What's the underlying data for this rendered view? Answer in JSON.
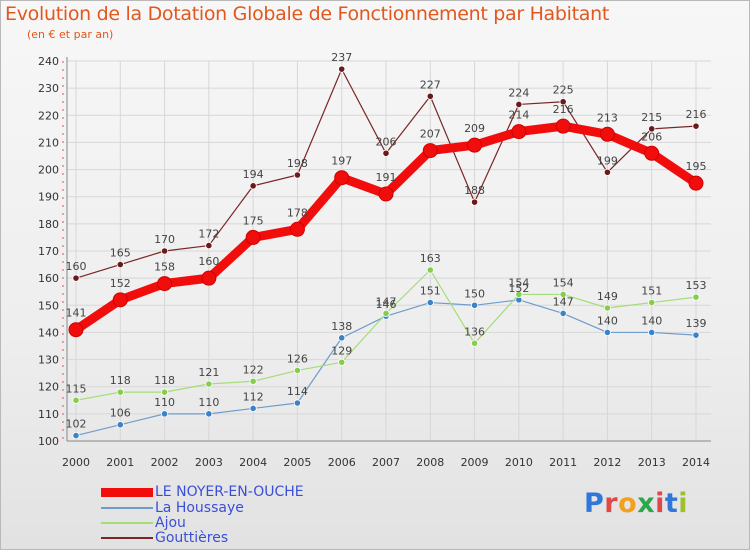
{
  "title": "Evolution de la Dotation Globale de Fonctionnement par Habitant",
  "subtitle": "(en € et par an)",
  "logo": {
    "text": "Proxiti",
    "letters": [
      {
        "ch": "P",
        "color": "#2f77d8"
      },
      {
        "ch": "r",
        "color": "#e04848"
      },
      {
        "ch": "o",
        "color": "#f2a11f"
      },
      {
        "ch": "x",
        "color": "#2aa84a"
      },
      {
        "ch": "i",
        "color": "#e04848"
      },
      {
        "ch": "t",
        "color": "#2f77d8"
      },
      {
        "ch": "i",
        "color": "#9cc12c"
      }
    ]
  },
  "colors": {
    "title": "#e0581e",
    "axis_text": "#333333",
    "grid": "#d7d7d7"
  },
  "chart_data": {
    "type": "line",
    "title": "Evolution de la Dotation Globale de Fonctionnement par Habitant",
    "subtitle": "(en € et par an)",
    "xlabel": "",
    "ylabel": "",
    "ylim": [
      100,
      240
    ],
    "yticks": [
      100,
      110,
      120,
      130,
      140,
      150,
      160,
      170,
      180,
      190,
      200,
      210,
      220,
      230,
      240
    ],
    "categories": [
      "2000",
      "2001",
      "2002",
      "2003",
      "2004",
      "2005",
      "2006",
      "2007",
      "2008",
      "2009",
      "2010",
      "2011",
      "2012",
      "2013",
      "2014"
    ],
    "grid": true,
    "legend": "bottom-left",
    "series": [
      {
        "name": "Gouttières",
        "color": "#7a2626",
        "marker": "#6b1a1a",
        "width": "thin",
        "values": [
          160,
          165,
          170,
          172,
          194,
          198,
          237,
          206,
          227,
          188,
          224,
          225,
          199,
          215,
          216
        ]
      },
      {
        "name": "La Houssaye",
        "color": "#6e9ccc",
        "marker": "#3b82c9",
        "width": "thin",
        "values": [
          102,
          106,
          110,
          110,
          112,
          114,
          138,
          146,
          151,
          150,
          152,
          147,
          140,
          140,
          139
        ]
      },
      {
        "name": "Ajou",
        "color": "#a5dd78",
        "marker": "#86cc4e",
        "width": "thin",
        "values": [
          115,
          118,
          118,
          121,
          122,
          126,
          129,
          147,
          163,
          136,
          154,
          154,
          149,
          151,
          153
        ]
      },
      {
        "name": "LE NOYER-EN-OUCHE",
        "color": "#f20d0d",
        "marker": "#f20d0d",
        "width": "thick",
        "values": [
          141,
          152,
          158,
          160,
          175,
          178,
          197,
          191,
          207,
          209,
          214,
          216,
          213,
          206,
          195
        ]
      }
    ],
    "legend_order": [
      "LE NOYER-EN-OUCHE",
      "La Houssaye",
      "Ajou",
      "Gouttières"
    ]
  }
}
